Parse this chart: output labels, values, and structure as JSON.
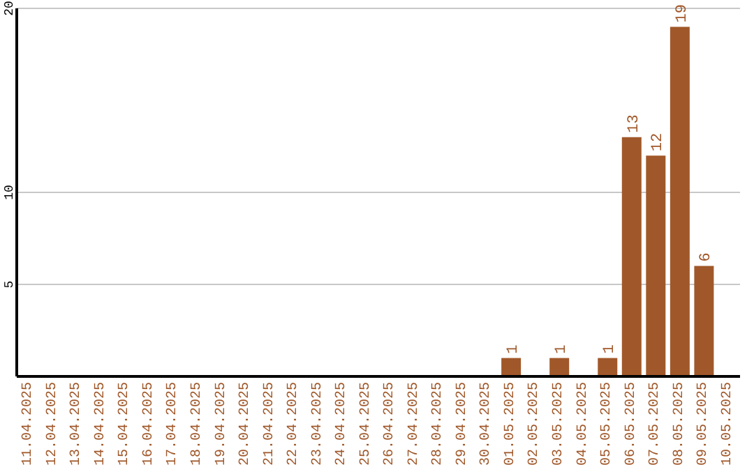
{
  "chart_data": {
    "type": "bar",
    "categories": [
      "11.04.2025",
      "12.04.2025",
      "13.04.2025",
      "14.04.2025",
      "15.04.2025",
      "16.04.2025",
      "17.04.2025",
      "18.04.2025",
      "19.04.2025",
      "20.04.2025",
      "21.04.2025",
      "22.04.2025",
      "23.04.2025",
      "24.04.2025",
      "25.04.2025",
      "26.04.2025",
      "27.04.2025",
      "28.04.2025",
      "29.04.2025",
      "30.04.2025",
      "01.05.2025",
      "02.05.2025",
      "03.05.2025",
      "04.05.2025",
      "05.05.2025",
      "06.05.2025",
      "07.05.2025",
      "08.05.2025",
      "09.05.2025",
      "10.05.2025"
    ],
    "values": [
      0,
      0,
      0,
      0,
      0,
      0,
      0,
      0,
      0,
      0,
      0,
      0,
      0,
      0,
      0,
      0,
      0,
      0,
      0,
      0,
      1,
      0,
      1,
      0,
      1,
      13,
      12,
      19,
      6,
      0
    ],
    "value_labels": [
      null,
      null,
      null,
      null,
      null,
      null,
      null,
      null,
      null,
      null,
      null,
      null,
      null,
      null,
      null,
      null,
      null,
      null,
      null,
      null,
      "1",
      null,
      "1",
      null,
      "1",
      "13",
      "12",
      "19",
      "6",
      null
    ],
    "color": "#a0582a",
    "ylim": [
      0,
      20
    ],
    "yticks": [
      5,
      10,
      20
    ],
    "grid": "y"
  }
}
